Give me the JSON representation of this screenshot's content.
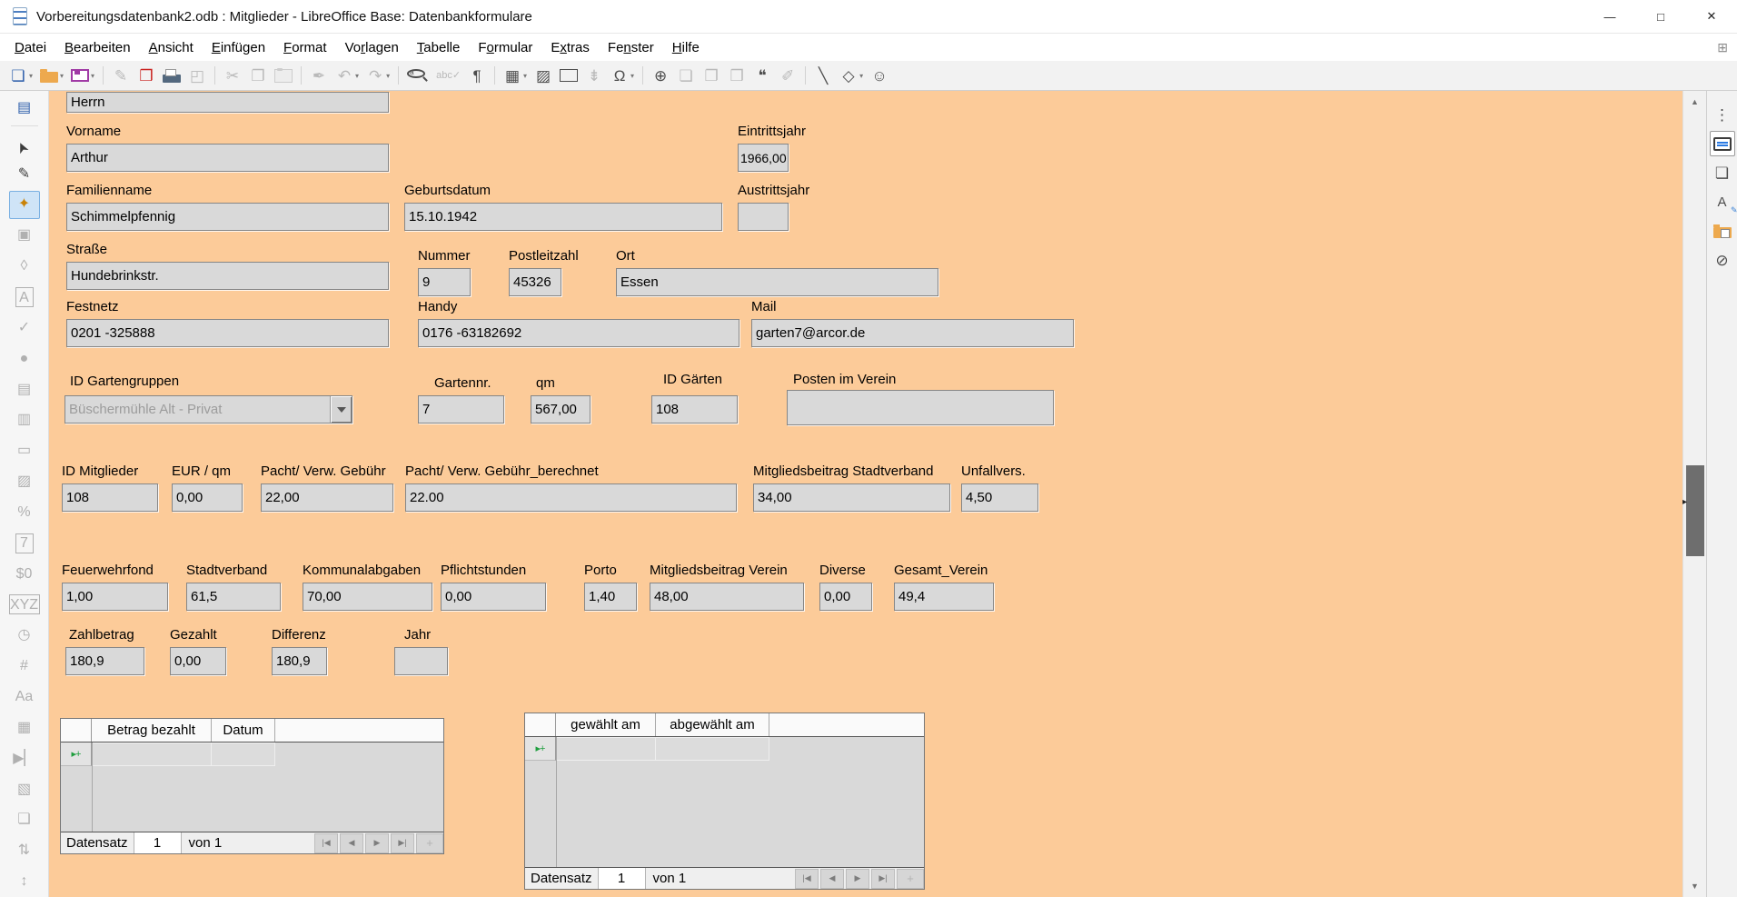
{
  "window": {
    "title": "Vorbereitungsdatenbank2.odb : Mitglieder - LibreOffice Base: Datenbankformulare",
    "controls": [
      {
        "name": "minimize",
        "glyph": "—"
      },
      {
        "name": "maximize",
        "glyph": "□"
      },
      {
        "name": "close",
        "glyph": "✕"
      }
    ]
  },
  "menubar": {
    "items": [
      {
        "label": "Datei",
        "accel": 0
      },
      {
        "label": "Bearbeiten",
        "accel": 0
      },
      {
        "label": "Ansicht",
        "accel": 0
      },
      {
        "label": "Einfügen",
        "accel": 0
      },
      {
        "label": "Format",
        "accel": 0
      },
      {
        "label": "Vorlagen",
        "accel": 2
      },
      {
        "label": "Tabelle",
        "accel": 0
      },
      {
        "label": "Formular",
        "accel": 1
      },
      {
        "label": "Extras",
        "accel": 1
      },
      {
        "label": "Fenster",
        "accel": 2
      },
      {
        "label": "Hilfe",
        "accel": 0
      }
    ],
    "right_icon": {
      "name": "menubar-extension",
      "glyph": "⊞"
    }
  },
  "toolbar": {
    "groups": [
      [
        {
          "name": "new-form-document",
          "glyph": "❏",
          "color": "#2a5caa",
          "dropdown": true,
          "enabled": true
        },
        {
          "name": "open",
          "css": "folder",
          "dropdown": true,
          "enabled": true
        },
        {
          "name": "save",
          "css": "floppy",
          "dropdown": true,
          "enabled": true
        }
      ],
      [
        {
          "name": "edit-mode",
          "glyph": "✎",
          "enabled": false
        },
        {
          "name": "export-pdf",
          "glyph": "❒",
          "color": "#c9211e",
          "enabled": true
        },
        {
          "name": "print",
          "css": "printer",
          "enabled": true
        },
        {
          "name": "print-preview",
          "glyph": "◰",
          "enabled": false
        }
      ],
      [
        {
          "name": "cut",
          "glyph": "✂",
          "enabled": false
        },
        {
          "name": "copy",
          "glyph": "❐",
          "enabled": false
        },
        {
          "name": "paste",
          "css": "clipboard",
          "enabled": false
        }
      ],
      [
        {
          "name": "clone-formatting",
          "glyph": "✒",
          "enabled": false
        },
        {
          "name": "undo",
          "glyph": "↶",
          "dropdown": true,
          "enabled": false
        },
        {
          "name": "redo",
          "glyph": "↷",
          "dropdown": true,
          "enabled": false
        }
      ],
      [
        {
          "name": "find-replace",
          "css": "magnifier",
          "enabled": true
        },
        {
          "name": "spelling",
          "glyph": "abc✓",
          "small": true,
          "enabled": false
        },
        {
          "name": "formatting-marks",
          "glyph": "¶",
          "enabled": true
        }
      ],
      [
        {
          "name": "insert-table",
          "glyph": "▦",
          "dropdown": true,
          "enabled": true
        },
        {
          "name": "insert-image",
          "glyph": "▨",
          "enabled": true
        },
        {
          "name": "insert-text-box",
          "glyph": "A",
          "css": "textbox",
          "enabled": true
        },
        {
          "name": "insert-page-break",
          "glyph": "⇟",
          "enabled": false
        },
        {
          "name": "special-character",
          "glyph": "Ω",
          "dropdown": true,
          "enabled": true
        }
      ],
      [
        {
          "name": "insert-hyperlink",
          "glyph": "⊕",
          "enabled": true
        },
        {
          "name": "insert-footnote",
          "glyph": "❏",
          "enabled": false
        },
        {
          "name": "insert-endnote",
          "glyph": "❐",
          "enabled": false
        },
        {
          "name": "insert-field",
          "glyph": "❒",
          "enabled": false
        },
        {
          "name": "insert-comment",
          "glyph": "❝",
          "enabled": true
        },
        {
          "name": "track-changes",
          "glyph": "✐",
          "enabled": false
        }
      ],
      [
        {
          "name": "insert-line",
          "glyph": "╲",
          "enabled": true
        },
        {
          "name": "basic-shapes",
          "glyph": "◇",
          "dropdown": true,
          "enabled": true
        },
        {
          "name": "show-draw-functions",
          "glyph": "☺",
          "enabled": true
        }
      ]
    ]
  },
  "form_controls_toolbar": {
    "items": [
      {
        "name": "form-design",
        "glyph": "▤",
        "color": "#2a5caa",
        "strong": true
      },
      {
        "name": "select",
        "glyph": "➤",
        "pointer": true,
        "strong": true
      },
      {
        "name": "design-mode",
        "glyph": "✎",
        "strong": true
      },
      {
        "name": "form-wizard",
        "glyph": "✦",
        "active": true
      },
      {
        "name": "form-properties",
        "glyph": "▣"
      },
      {
        "name": "label-field",
        "glyph": "◊"
      },
      {
        "name": "text-box-control",
        "glyph": "A",
        "boxed": true
      },
      {
        "name": "check-box",
        "glyph": "✓"
      },
      {
        "name": "option-button",
        "glyph": "●"
      },
      {
        "name": "list-box",
        "glyph": "▤"
      },
      {
        "name": "combo-box",
        "glyph": "▥"
      },
      {
        "name": "push-button",
        "glyph": "▭"
      },
      {
        "name": "image-button",
        "glyph": "▨"
      },
      {
        "name": "formatted-field",
        "glyph": "%"
      },
      {
        "name": "date-field",
        "glyph": "7",
        "boxed": true
      },
      {
        "name": "currency-field",
        "glyph": "$0",
        "small": true
      },
      {
        "name": "pattern-field",
        "glyph": "XYZ",
        "boxed": true
      },
      {
        "name": "time-field",
        "glyph": "◷"
      },
      {
        "name": "numeric-field",
        "glyph": "#"
      },
      {
        "name": "group-box",
        "glyph": "Aa",
        "small": true
      },
      {
        "name": "table-control",
        "glyph": "▦"
      },
      {
        "name": "navigation-bar",
        "glyph": "▶▏",
        "small": true
      },
      {
        "name": "image-control",
        "glyph": "▧"
      },
      {
        "name": "file-selection",
        "glyph": "❏"
      },
      {
        "name": "spin-button",
        "glyph": "⇅"
      },
      {
        "name": "scrollbar-control",
        "glyph": "↕"
      }
    ]
  },
  "form": {
    "fields": {
      "anrede": {
        "label": "",
        "value": "Herrn"
      },
      "vorname": {
        "label": "Vorname",
        "value": "Arthur"
      },
      "eintrittsjahr": {
        "label": "Eintrittsjahr",
        "value": "1966,00"
      },
      "familienname": {
        "label": "Familienname",
        "value": "Schimmelpfennig"
      },
      "geburtsdatum": {
        "label": "Geburtsdatum",
        "value": "15.10.1942"
      },
      "austrittsjahr": {
        "label": "Austrittsjahr",
        "value": ""
      },
      "strasse": {
        "label": "Straße",
        "value": "Hundebrinkstr."
      },
      "nummer": {
        "label": "Nummer",
        "value": "9"
      },
      "postleitzahl": {
        "label": "Postleitzahl",
        "value": "45326"
      },
      "ort": {
        "label": "Ort",
        "value": "Essen"
      },
      "festnetz": {
        "label": "Festnetz",
        "value": "0201 -325888"
      },
      "handy": {
        "label": "Handy",
        "value": "0176 -63182692"
      },
      "mail": {
        "label": "Mail",
        "value": "garten7@arcor.de"
      },
      "id_gartengruppen": {
        "label": "ID Gartengruppen",
        "value": "Büschermühle Alt - Privat",
        "type": "combobox"
      },
      "gartennr": {
        "label": "Gartennr.",
        "value": "7"
      },
      "qm": {
        "label": "qm",
        "value": "567,00"
      },
      "id_gaerten": {
        "label": "ID Gärten",
        "value": "108"
      },
      "posten_im_verein": {
        "label": "Posten im Verein",
        "value": ""
      },
      "id_mitglieder": {
        "label": "ID Mitglieder",
        "value": "108"
      },
      "eur_qm": {
        "label": "EUR / qm",
        "value": "0,00"
      },
      "pacht_verw_gebuehr": {
        "label": "Pacht/ Verw. Gebühr",
        "value": "22,00"
      },
      "pacht_verw_gebuehr_berechnet": {
        "label": "Pacht/ Verw. Gebühr_berechnet",
        "value": "22.00"
      },
      "mitgliedsbeitrag_stadtverband": {
        "label": "Mitgliedsbeitrag Stadtverband",
        "value": "34,00"
      },
      "unfallvers": {
        "label": "Unfallvers.",
        "value": "4,50"
      },
      "feuerwehrfond": {
        "label": "Feuerwehrfond",
        "value": "1,00"
      },
      "stadtverband": {
        "label": "Stadtverband",
        "value": "61,5"
      },
      "kommunalabgaben": {
        "label": "Kommunalabgaben",
        "value": "70,00"
      },
      "pflichtstunden": {
        "label": "Pflichtstunden",
        "value": "0,00"
      },
      "porto": {
        "label": "Porto",
        "value": "1,40"
      },
      "mitgliedsbeitrag_verein": {
        "label": "Mitgliedsbeitrag Verein",
        "value": "48,00"
      },
      "diverse": {
        "label": "Diverse",
        "value": "0,00"
      },
      "gesamt_verein": {
        "label": "Gesamt_Verein",
        "value": "49,4"
      },
      "zahlbetrag": {
        "label": "Zahlbetrag",
        "value": "180,9"
      },
      "gezahlt": {
        "label": "Gezahlt",
        "value": "0,00"
      },
      "differenz": {
        "label": "Differenz",
        "value": "180,9"
      },
      "jahr": {
        "label": "Jahr",
        "value": ""
      }
    }
  },
  "payments_grid": {
    "columns": [
      "Betrag bezahlt",
      "Datum"
    ],
    "new_row_marker": "▸+",
    "footer": {
      "label": "Datensatz",
      "record_value": "1",
      "count_text": "von 1"
    }
  },
  "elections_grid": {
    "columns": [
      "gewählt am",
      "abgewählt am"
    ],
    "new_row_marker": "▸+",
    "footer": {
      "label": "Datensatz",
      "record_value": "1",
      "count_text": "von 1"
    }
  },
  "record_nav": [
    {
      "name": "first-record",
      "glyph": "|◀"
    },
    {
      "name": "previous-record",
      "glyph": "◀"
    },
    {
      "name": "next-record",
      "glyph": "▶"
    },
    {
      "name": "last-record",
      "glyph": "▶|"
    },
    {
      "name": "new-record",
      "glyph": "+"
    }
  ],
  "sidebar": {
    "items": [
      {
        "name": "sidebar-settings",
        "glyph": "⋮"
      },
      {
        "name": "properties",
        "css": "properties",
        "active": true
      },
      {
        "name": "page",
        "glyph": "❏"
      },
      {
        "name": "styles",
        "glyph": "A",
        "css": "styles"
      },
      {
        "name": "gallery",
        "css": "gallery"
      },
      {
        "name": "navigator",
        "glyph": "⊘"
      }
    ]
  },
  "scrollbar": {
    "up_glyph": "▲",
    "down_glyph": "▼",
    "collapse_glyph": "▸"
  },
  "colors": {
    "form_background": "#fccb99",
    "field_background": "#d9d9d9",
    "wizard_selection": "#cfe4f7",
    "marker_green": "#1e9e3e",
    "brand_blue": "#2a5caa"
  }
}
